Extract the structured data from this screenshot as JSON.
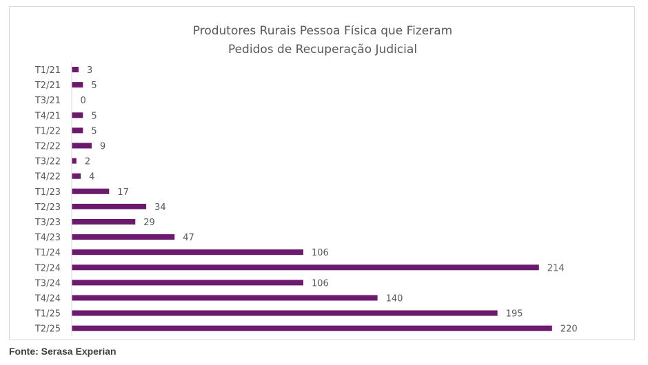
{
  "source": "Fonte: Serasa Experian",
  "chart_data": {
    "type": "bar",
    "orientation": "horizontal",
    "title_lines": [
      "Produtores Rurais Pessoa Física que Fizeram",
      "Pedidos de Recuperação Judicial"
    ],
    "categories": [
      "T1/21",
      "T2/21",
      "T3/21",
      "T4/21",
      "T1/22",
      "T2/22",
      "T3/22",
      "T4/22",
      "T1/23",
      "T2/23",
      "T3/23",
      "T4/23",
      "T1/24",
      "T2/24",
      "T3/24",
      "T4/24",
      "T1/25",
      "T2/25"
    ],
    "values": [
      3,
      5,
      0,
      5,
      5,
      9,
      2,
      4,
      17,
      34,
      29,
      47,
      106,
      214,
      106,
      140,
      195,
      220
    ],
    "bar_color": "#6b1a6e",
    "axis_line_color": "#d9d9d9",
    "label_color": "#595959",
    "data_labels": true,
    "grid": false,
    "legend": "none"
  }
}
